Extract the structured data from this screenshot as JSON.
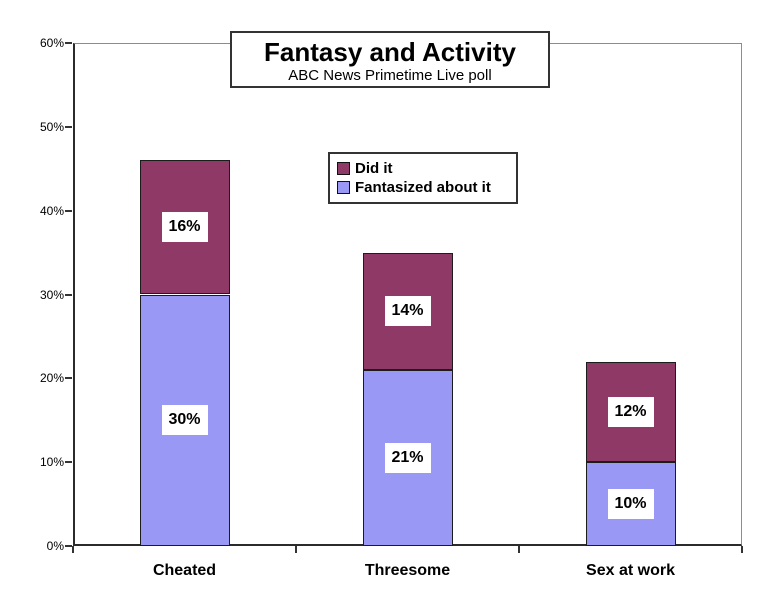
{
  "chart_data": {
    "type": "bar",
    "stacked": true,
    "title": "Fantasy and Activity",
    "subtitle": "ABC News Primetime Live poll",
    "categories": [
      "Cheated",
      "Threesome",
      "Sex at work"
    ],
    "series": [
      {
        "name": "Fantasized about it",
        "color": "#9999F5",
        "values": [
          30,
          21,
          10
        ]
      },
      {
        "name": "Did it",
        "color": "#8F3A66",
        "values": [
          16,
          14,
          12
        ]
      }
    ],
    "segment_labels": {
      "Cheated": {
        "Fantasized about it": "30%",
        "Did it": "16%"
      },
      "Threesome": {
        "Fantasized about it": "21%",
        "Did it": "14%"
      },
      "Sex at work": {
        "Fantasized about it": "10%",
        "Did it": "12%"
      }
    },
    "ylabel": "",
    "xlabel": "",
    "ylim": [
      0,
      60
    ],
    "ytick_step": 10,
    "ytick_labels": [
      "0%",
      "10%",
      "20%",
      "30%",
      "40%",
      "50%",
      "60%"
    ],
    "value_suffix": "%",
    "grid": false,
    "legend": {
      "position": "upper-center",
      "entries": [
        {
          "label": "Did it",
          "color": "#8F3A66"
        },
        {
          "label": "Fantasized about it",
          "color": "#9999F5"
        }
      ]
    },
    "colors": {
      "did_it": "#8F3A66",
      "fantasized": "#9999F5",
      "axis": "#2b2b2b",
      "plot_border": "#8c8c8c",
      "background": "#ffffff",
      "label_box": "#ffffff",
      "text": "#000000"
    }
  }
}
